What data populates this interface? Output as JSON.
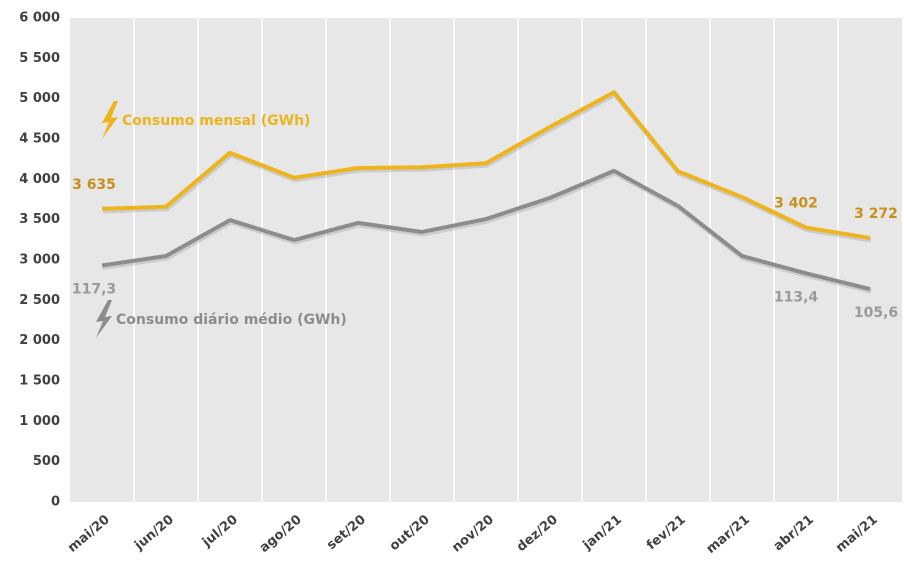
{
  "chart_data": {
    "type": "line",
    "categories": [
      "mai/20",
      "jun/20",
      "jul/20",
      "ago/20",
      "set/20",
      "out/20",
      "nov/20",
      "dez/20",
      "jan/21",
      "fev/21",
      "mar/21",
      "abr/21",
      "mai/21"
    ],
    "series": [
      {
        "name": "Consumo mensal (GWh)",
        "color": "#EDB41E",
        "label_color": "#C8901A",
        "values": [
          3635,
          3660,
          4330,
          4020,
          4140,
          4150,
          4200,
          4650,
          5080,
          4100,
          3780,
          3402,
          3272
        ],
        "value_labels": [
          "3 635",
          null,
          null,
          null,
          null,
          null,
          null,
          null,
          null,
          null,
          null,
          "3 402",
          "3 272"
        ]
      },
      {
        "name": "Consumo diário médio (GWh)",
        "color": "#8C8C8C",
        "label_color": "#9A9A9A",
        "axis": "y2",
        "values": [
          117.3,
          122.0,
          139.8,
          129.9,
          138.4,
          133.9,
          140.3,
          150.8,
          164.2,
          146.8,
          122.0,
          113.4,
          105.6
        ],
        "value_labels": [
          "117,3",
          null,
          null,
          null,
          null,
          null,
          null,
          null,
          null,
          null,
          null,
          "113,4",
          "105,6"
        ]
      }
    ],
    "ylim": [
      0,
      6000
    ],
    "yticks": [
      0,
      500,
      {
        "value": 1000,
        "label": "1 000"
      },
      {
        "value": 1500,
        "label": "1 500"
      },
      {
        "value": 2000,
        "label": "2 000"
      },
      {
        "value": 2500,
        "label": "2 500"
      },
      {
        "value": 3000,
        "label": "3 000"
      },
      {
        "value": 3500,
        "label": "3 500"
      },
      {
        "value": 4000,
        "label": "4 000"
      },
      {
        "value": 4500,
        "label": "4 500"
      },
      {
        "value": 5000,
        "label": "5 000"
      },
      {
        "value": 5500,
        "label": "5 500"
      },
      {
        "value": 6000,
        "label": "6 000"
      }
    ],
    "y2lim": [
      0,
      240
    ],
    "grid": true
  }
}
